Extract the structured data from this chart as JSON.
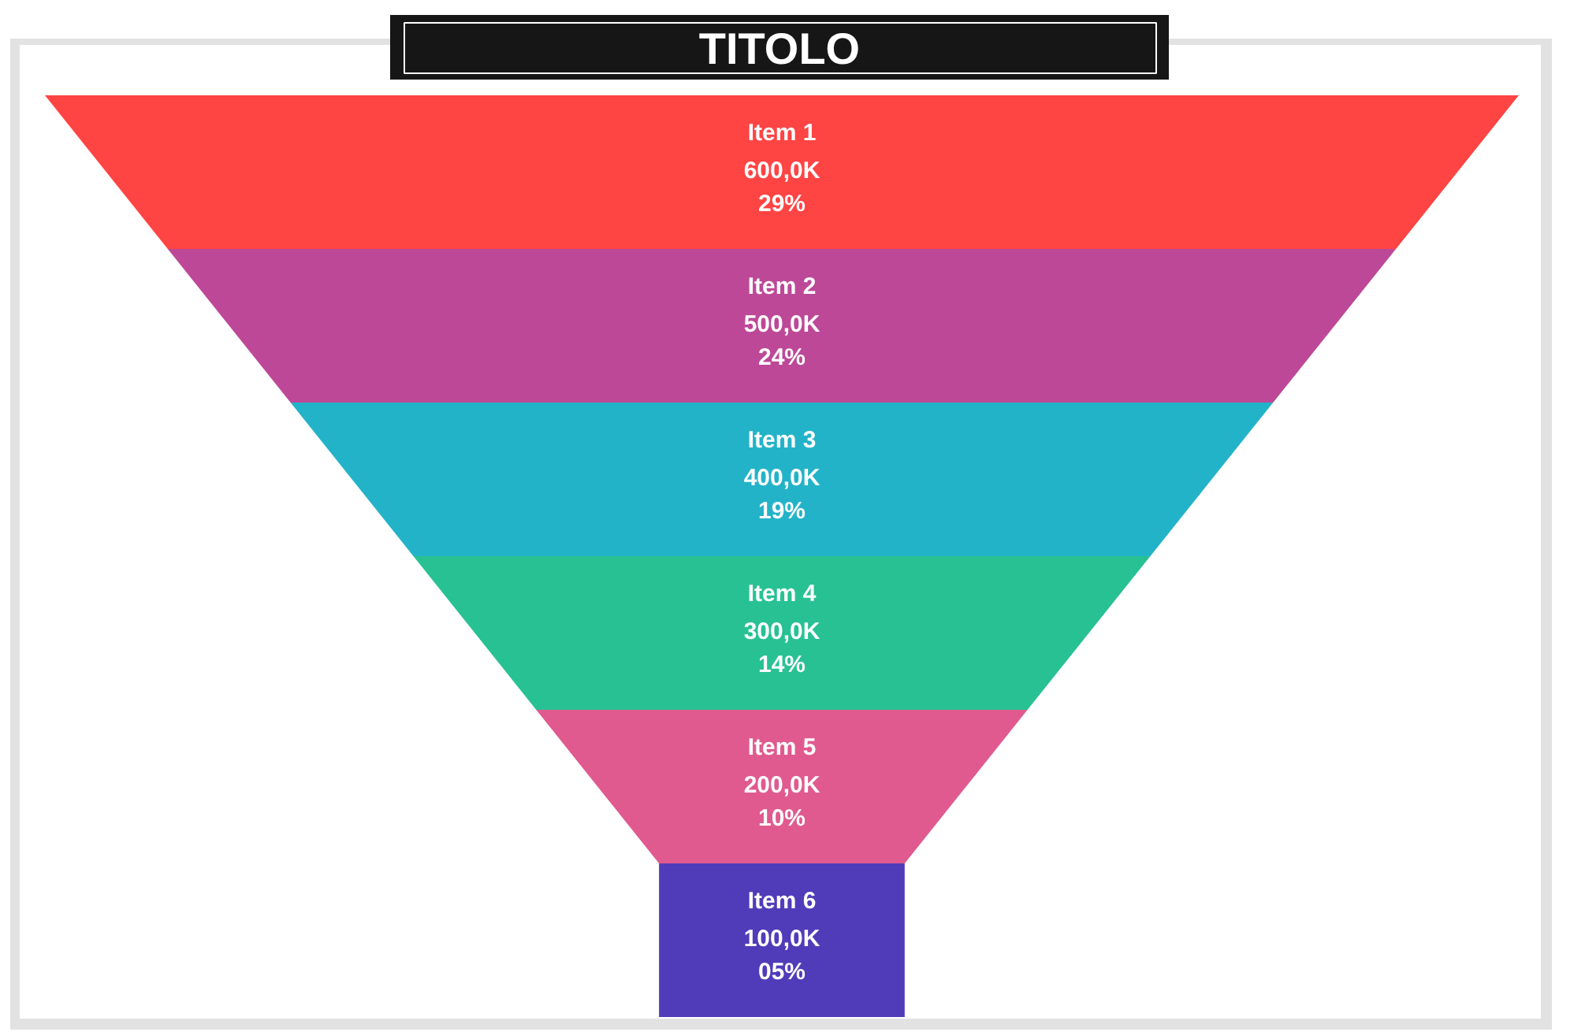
{
  "chart_data": {
    "type": "other",
    "title": "TITOLO",
    "categories": [
      "Item 1",
      "Item 2",
      "Item 3",
      "Item 4",
      "Item 5",
      "Item 6"
    ],
    "series": [
      {
        "colors": [
          "#ff4444",
          "#bd4898",
          "#23b3c9",
          "#28c193",
          "#e05a8f",
          "#503cb9"
        ],
        "values": [
          600,
          500,
          400,
          300,
          200,
          100
        ],
        "value_labels": [
          "600,0K",
          "500,0K",
          "400,0K",
          "300,0K",
          "200,0K",
          "100,0K"
        ]
      },
      {
        "values": [
          29,
          24,
          19,
          14,
          10,
          5
        ],
        "value_labels": [
          "29%",
          "24%",
          "19%",
          "14%",
          "10%",
          "05%"
        ]
      }
    ]
  }
}
